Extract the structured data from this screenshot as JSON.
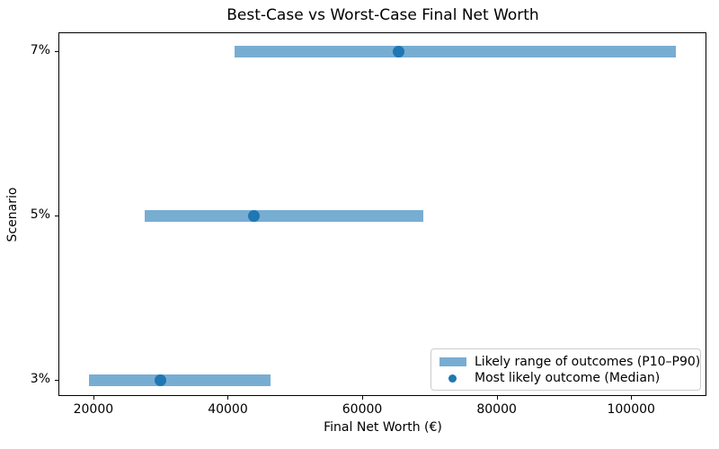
{
  "chart_data": {
    "type": "bar",
    "orientation": "horizontal",
    "title": "Best-Case vs Worst-Case Final Net Worth",
    "xlabel": "Final Net Worth (€)",
    "ylabel": "Scenario",
    "categories": [
      "3%",
      "5%",
      "7%"
    ],
    "series": [
      {
        "name": "Likely range of outcomes (P10–P90)",
        "type": "range",
        "p10": [
          19400,
          27700,
          41000
        ],
        "p90": [
          46400,
          69100,
          106700
        ]
      },
      {
        "name": "Most likely outcome (Median)",
        "type": "point",
        "values": [
          30000,
          43900,
          65400
        ]
      }
    ],
    "x_ticks": [
      {
        "value": 20000,
        "label": "20000"
      },
      {
        "value": 40000,
        "label": "40000"
      },
      {
        "value": 60000,
        "label": "60000"
      },
      {
        "value": 80000,
        "label": "80000"
      },
      {
        "value": 100000,
        "label": "100000"
      }
    ],
    "xlim": [
      14800,
      111200
    ],
    "grid": false,
    "legend": {
      "position": "lower right",
      "items": [
        {
          "swatch": "bar",
          "label": "Likely range of outcomes (P10–P90)"
        },
        {
          "swatch": "dot",
          "label": "Most likely outcome (Median)"
        }
      ]
    },
    "colors": {
      "range_bar": "#78add2",
      "median_dot": "#1f77b4",
      "spine": "#000000",
      "text": "#000000",
      "legend_border": "#cccccc"
    }
  }
}
